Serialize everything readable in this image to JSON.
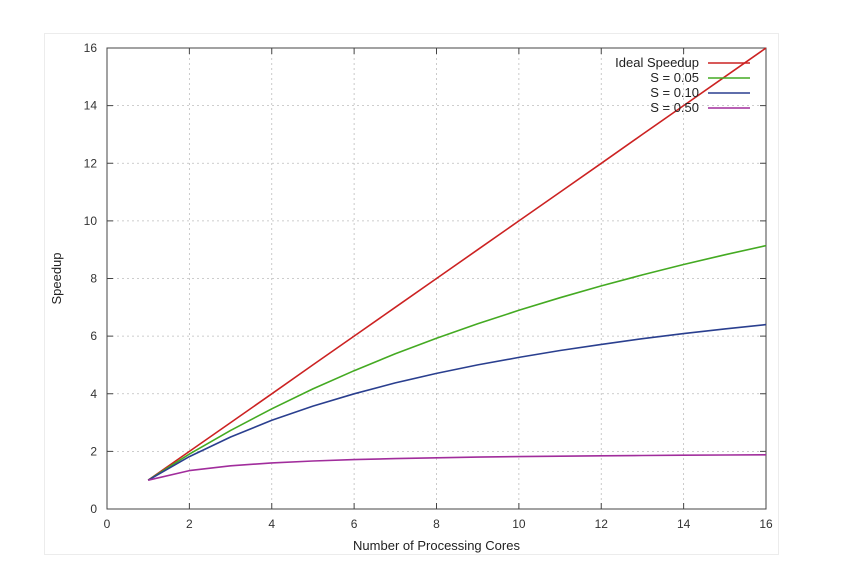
{
  "chart_data": {
    "type": "line",
    "title": "",
    "xlabel": "Number of Processing Cores",
    "ylabel": "Speedup",
    "xlim": [
      0,
      16
    ],
    "ylim": [
      0,
      16
    ],
    "xticks": [
      0,
      2,
      4,
      6,
      8,
      10,
      12,
      14,
      16
    ],
    "yticks": [
      0,
      2,
      4,
      6,
      8,
      10,
      12,
      14,
      16
    ],
    "grid": true,
    "legend_position": "top-right",
    "x": [
      1,
      2,
      3,
      4,
      5,
      6,
      7,
      8,
      9,
      10,
      11,
      12,
      13,
      14,
      15,
      16
    ],
    "series": [
      {
        "name": "Ideal Speedup",
        "color": "#cc2222",
        "values": [
          1,
          2,
          3,
          4,
          5,
          6,
          7,
          8,
          9,
          10,
          11,
          12,
          13,
          14,
          15,
          16
        ]
      },
      {
        "name": "S = 0.05",
        "color": "#44aa22",
        "values": [
          1,
          1.905,
          2.727,
          3.478,
          4.167,
          4.8,
          5.385,
          5.926,
          6.429,
          6.897,
          7.333,
          7.742,
          8.125,
          8.485,
          8.824,
          9.143
        ]
      },
      {
        "name": "S = 0.10",
        "color": "#2a3f8f",
        "values": [
          1,
          1.818,
          2.5,
          3.077,
          3.571,
          4.0,
          4.375,
          4.706,
          5.0,
          5.263,
          5.5,
          5.714,
          5.909,
          6.087,
          6.25,
          6.4
        ]
      },
      {
        "name": "S = 0.50",
        "color": "#a12d9c",
        "values": [
          1,
          1.333,
          1.5,
          1.6,
          1.667,
          1.714,
          1.75,
          1.778,
          1.8,
          1.818,
          1.833,
          1.846,
          1.857,
          1.867,
          1.875,
          1.882
        ]
      }
    ]
  }
}
